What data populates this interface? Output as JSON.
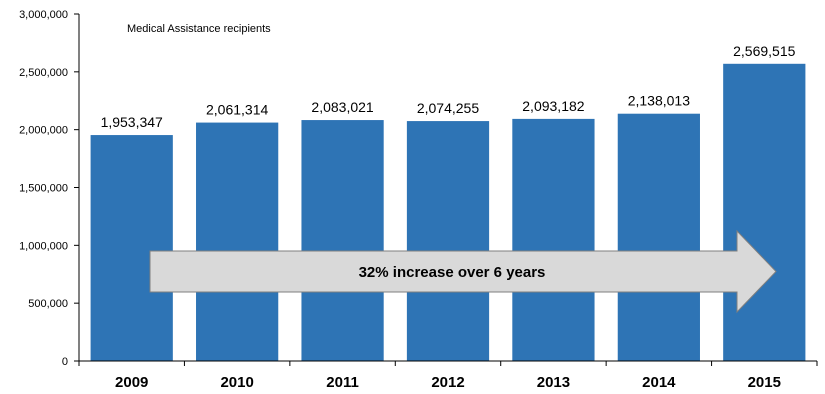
{
  "subtitle": "Medical Assistance recipients",
  "annotation": "32% increase over 6 years",
  "colors": {
    "bar": "#2E74B5",
    "arrow_fill": "#D9D9D9",
    "arrow_stroke": "#7F7F7F"
  },
  "chart_data": {
    "type": "bar",
    "title": "",
    "subtitle": "Medical Assistance recipients",
    "xlabel": "",
    "ylabel": "",
    "categories": [
      "2009",
      "2010",
      "2011",
      "2012",
      "2013",
      "2014",
      "2015"
    ],
    "values": [
      1953347,
      2061314,
      2083021,
      2074255,
      2093182,
      2138013,
      2569515
    ],
    "value_labels": [
      "1,953,347",
      "2,061,314",
      "2,083,021",
      "2,074,255",
      "2,093,182",
      "2,138,013",
      "2,569,515"
    ],
    "ylim": [
      0,
      3000000
    ],
    "yticks": [
      0,
      500000,
      1000000,
      1500000,
      2000000,
      2500000,
      3000000
    ],
    "ytick_labels": [
      "0",
      "500,000",
      "1,000,000",
      "1,500,000",
      "2,000,000",
      "2,500,000",
      "3,000,000"
    ],
    "grid": false,
    "legend": "none",
    "annotation": "32% increase over 6 years"
  }
}
